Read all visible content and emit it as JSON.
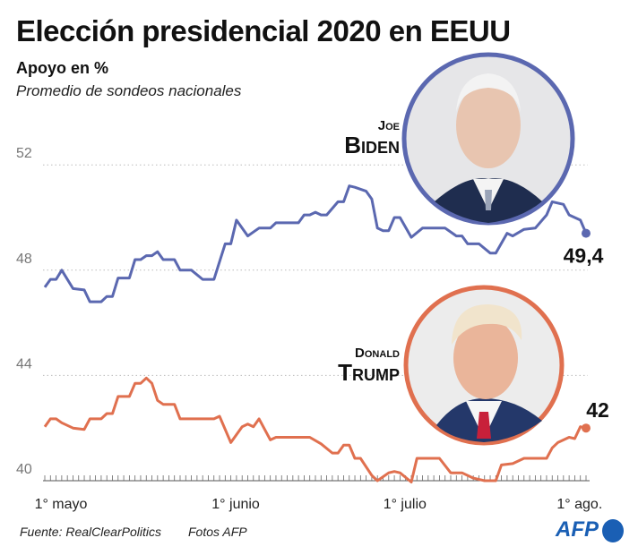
{
  "header": {
    "title": "Elección presidencial 2020 en EEUU",
    "subtitle": "Apoyo en %",
    "description": "Promedio de sondeos nacionales"
  },
  "footer": {
    "source": "Fuente: RealClearPolitics",
    "photos": "Fotos AFP",
    "logo": "AFP"
  },
  "candidates": {
    "biden": {
      "first": "Joe",
      "last": "Biden",
      "photo_icon": "biden-portrait",
      "color": "#5b68b0"
    },
    "trump": {
      "first": "Donald",
      "last": "Trump",
      "photo_icon": "trump-portrait",
      "color": "#e0704f"
    }
  },
  "chart_data": {
    "type": "line",
    "title": "Elección presidencial 2020 en EEUU",
    "ylabel": "Apoyo en %",
    "ylim": [
      40,
      52
    ],
    "yticks": [
      40,
      44,
      48,
      52
    ],
    "xlim": [
      "2020-05-01",
      "2020-08-05"
    ],
    "xticks": [
      {
        "date": "2020-05-01",
        "label": "1° mayo"
      },
      {
        "date": "2020-06-01",
        "label": "1° junio"
      },
      {
        "date": "2020-07-01",
        "label": "1° julio"
      },
      {
        "date": "2020-08-01",
        "label": "1° ago."
      }
    ],
    "grid": "dotted horizontal",
    "series": [
      {
        "name": "Joe Biden",
        "color": "#5b68b0",
        "end_label": "49,4",
        "points": [
          [
            "2020-05-01",
            47.35
          ],
          [
            "2020-05-02",
            47.65
          ],
          [
            "2020-05-03",
            47.65
          ],
          [
            "2020-05-04",
            48.0
          ],
          [
            "2020-05-06",
            47.3
          ],
          [
            "2020-05-08",
            47.25
          ],
          [
            "2020-05-09",
            46.8
          ],
          [
            "2020-05-11",
            46.8
          ],
          [
            "2020-05-12",
            47.0
          ],
          [
            "2020-05-13",
            47.0
          ],
          [
            "2020-05-14",
            47.7
          ],
          [
            "2020-05-16",
            47.7
          ],
          [
            "2020-05-17",
            48.4
          ],
          [
            "2020-05-18",
            48.4
          ],
          [
            "2020-05-19",
            48.55
          ],
          [
            "2020-05-20",
            48.55
          ],
          [
            "2020-05-21",
            48.7
          ],
          [
            "2020-05-22",
            48.4
          ],
          [
            "2020-05-24",
            48.4
          ],
          [
            "2020-05-25",
            48.0
          ],
          [
            "2020-05-27",
            48.0
          ],
          [
            "2020-05-29",
            47.65
          ],
          [
            "2020-05-31",
            47.65
          ],
          [
            "2020-06-02",
            49.0
          ],
          [
            "2020-06-03",
            49.0
          ],
          [
            "2020-06-04",
            49.9
          ],
          [
            "2020-06-06",
            49.3
          ],
          [
            "2020-06-07",
            49.45
          ],
          [
            "2020-06-08",
            49.6
          ],
          [
            "2020-06-10",
            49.6
          ],
          [
            "2020-06-11",
            49.8
          ],
          [
            "2020-06-15",
            49.8
          ],
          [
            "2020-06-16",
            50.1
          ],
          [
            "2020-06-17",
            50.1
          ],
          [
            "2020-06-18",
            50.2
          ],
          [
            "2020-06-19",
            50.1
          ],
          [
            "2020-06-20",
            50.1
          ],
          [
            "2020-06-22",
            50.6
          ],
          [
            "2020-06-23",
            50.6
          ],
          [
            "2020-06-24",
            51.2
          ],
          [
            "2020-06-25",
            51.15
          ],
          [
            "2020-06-27",
            51.0
          ],
          [
            "2020-06-28",
            50.7
          ],
          [
            "2020-06-29",
            49.6
          ],
          [
            "2020-06-30",
            49.5
          ],
          [
            "2020-07-01",
            49.5
          ],
          [
            "2020-07-02",
            50.0
          ],
          [
            "2020-07-03",
            50.0
          ],
          [
            "2020-07-05",
            49.25
          ],
          [
            "2020-07-07",
            49.6
          ],
          [
            "2020-07-11",
            49.6
          ],
          [
            "2020-07-13",
            49.3
          ],
          [
            "2020-07-14",
            49.3
          ],
          [
            "2020-07-15",
            49.0
          ],
          [
            "2020-07-17",
            49.0
          ],
          [
            "2020-07-19",
            48.65
          ],
          [
            "2020-07-20",
            48.65
          ],
          [
            "2020-07-22",
            49.4
          ],
          [
            "2020-07-23",
            49.3
          ],
          [
            "2020-07-25",
            49.55
          ],
          [
            "2020-07-27",
            49.6
          ],
          [
            "2020-07-29",
            50.1
          ],
          [
            "2020-07-30",
            50.6
          ],
          [
            "2020-08-01",
            50.5
          ],
          [
            "2020-08-02",
            50.1
          ],
          [
            "2020-08-04",
            49.9
          ],
          [
            "2020-08-05",
            49.4
          ]
        ]
      },
      {
        "name": "Donald Trump",
        "color": "#e0704f",
        "end_label": "42",
        "points": [
          [
            "2020-05-01",
            42.05
          ],
          [
            "2020-05-02",
            42.35
          ],
          [
            "2020-05-03",
            42.35
          ],
          [
            "2020-05-04",
            42.2
          ],
          [
            "2020-05-06",
            42.0
          ],
          [
            "2020-05-08",
            41.95
          ],
          [
            "2020-05-09",
            42.35
          ],
          [
            "2020-05-11",
            42.35
          ],
          [
            "2020-05-12",
            42.55
          ],
          [
            "2020-05-13",
            42.55
          ],
          [
            "2020-05-14",
            43.2
          ],
          [
            "2020-05-16",
            43.2
          ],
          [
            "2020-05-17",
            43.7
          ],
          [
            "2020-05-18",
            43.7
          ],
          [
            "2020-05-19",
            43.9
          ],
          [
            "2020-05-20",
            43.7
          ],
          [
            "2020-05-21",
            43.05
          ],
          [
            "2020-05-22",
            42.9
          ],
          [
            "2020-05-24",
            42.9
          ],
          [
            "2020-05-25",
            42.35
          ],
          [
            "2020-05-31",
            42.35
          ],
          [
            "2020-06-01",
            42.45
          ],
          [
            "2020-06-03",
            41.45
          ],
          [
            "2020-06-05",
            42.05
          ],
          [
            "2020-06-06",
            42.15
          ],
          [
            "2020-06-07",
            42.05
          ],
          [
            "2020-06-08",
            42.35
          ],
          [
            "2020-06-10",
            41.55
          ],
          [
            "2020-06-11",
            41.65
          ],
          [
            "2020-06-17",
            41.65
          ],
          [
            "2020-06-19",
            41.4
          ],
          [
            "2020-06-21",
            41.05
          ],
          [
            "2020-06-22",
            41.05
          ],
          [
            "2020-06-23",
            41.35
          ],
          [
            "2020-06-24",
            41.35
          ],
          [
            "2020-06-25",
            40.85
          ],
          [
            "2020-06-26",
            40.85
          ],
          [
            "2020-06-28",
            40.2
          ],
          [
            "2020-06-29",
            40.0
          ],
          [
            "2020-07-01",
            40.3
          ],
          [
            "2020-07-02",
            40.35
          ],
          [
            "2020-07-03",
            40.3
          ],
          [
            "2020-07-05",
            39.95
          ],
          [
            "2020-07-06",
            40.85
          ],
          [
            "2020-07-10",
            40.85
          ],
          [
            "2020-07-12",
            40.3
          ],
          [
            "2020-07-14",
            40.3
          ],
          [
            "2020-07-16",
            40.1
          ],
          [
            "2020-07-18",
            40.0
          ],
          [
            "2020-07-20",
            40.0
          ],
          [
            "2020-07-21",
            40.6
          ],
          [
            "2020-07-23",
            40.65
          ],
          [
            "2020-07-25",
            40.85
          ],
          [
            "2020-07-29",
            40.85
          ],
          [
            "2020-07-30",
            41.25
          ],
          [
            "2020-07-31",
            41.45
          ],
          [
            "2020-08-02",
            41.65
          ],
          [
            "2020-08-03",
            41.6
          ],
          [
            "2020-08-04",
            42.05
          ],
          [
            "2020-08-05",
            42.0
          ]
        ]
      }
    ]
  }
}
